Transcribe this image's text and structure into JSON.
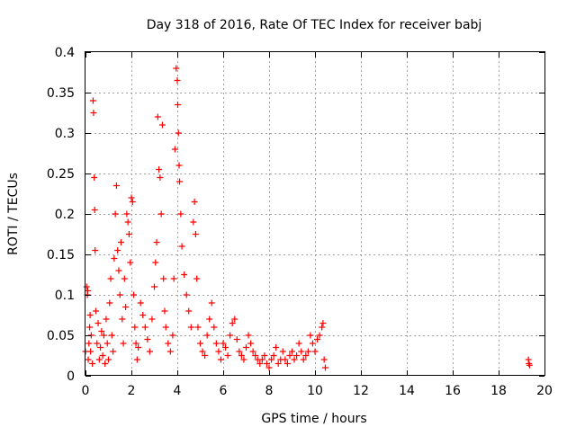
{
  "chart_data": {
    "type": "scatter",
    "title": "Day 318 of 2016, Rate Of TEC Index for receiver babj",
    "xlabel": "GPS time / hours",
    "ylabel": "ROTI / TECUs",
    "xlim": [
      0,
      20
    ],
    "ylim": [
      0,
      0.4
    ],
    "x_ticks": [
      0,
      2,
      4,
      6,
      8,
      10,
      12,
      14,
      16,
      18,
      20
    ],
    "y_ticks": [
      0,
      0.05,
      0.1,
      0.15,
      0.2,
      0.25,
      0.3,
      0.35,
      0.4
    ],
    "x_tick_labels": [
      "0",
      "2",
      "4",
      "6",
      "8",
      "10",
      "12",
      "14",
      "16",
      "18",
      "20"
    ],
    "y_tick_labels": [
      "0",
      "0.05",
      "0.1",
      "0.15",
      "0.2",
      "0.25",
      "0.3",
      "0.35",
      "0.4"
    ],
    "grid": true,
    "marker": "+",
    "color": "#ff0000",
    "series": [
      {
        "name": "ROTI",
        "points": [
          [
            0.0,
            0.03
          ],
          [
            0.05,
            0.11
          ],
          [
            0.08,
            0.1
          ],
          [
            0.1,
            0.105
          ],
          [
            0.12,
            0.02
          ],
          [
            0.15,
            0.04
          ],
          [
            0.18,
            0.06
          ],
          [
            0.2,
            0.075
          ],
          [
            0.22,
            0.03
          ],
          [
            0.25,
            0.05
          ],
          [
            0.3,
            0.015
          ],
          [
            0.33,
            0.34
          ],
          [
            0.35,
            0.325
          ],
          [
            0.38,
            0.245
          ],
          [
            0.4,
            0.205
          ],
          [
            0.42,
            0.155
          ],
          [
            0.45,
            0.08
          ],
          [
            0.5,
            0.04
          ],
          [
            0.55,
            0.065
          ],
          [
            0.6,
            0.02
          ],
          [
            0.65,
            0.035
          ],
          [
            0.7,
            0.055
          ],
          [
            0.75,
            0.025
          ],
          [
            0.8,
            0.05
          ],
          [
            0.85,
            0.015
          ],
          [
            0.9,
            0.07
          ],
          [
            0.95,
            0.04
          ],
          [
            1.0,
            0.02
          ],
          [
            1.05,
            0.09
          ],
          [
            1.1,
            0.12
          ],
          [
            1.15,
            0.05
          ],
          [
            1.2,
            0.03
          ],
          [
            1.25,
            0.145
          ],
          [
            1.3,
            0.2
          ],
          [
            1.35,
            0.235
          ],
          [
            1.4,
            0.155
          ],
          [
            1.45,
            0.13
          ],
          [
            1.5,
            0.1
          ],
          [
            1.55,
            0.165
          ],
          [
            1.6,
            0.07
          ],
          [
            1.65,
            0.04
          ],
          [
            1.7,
            0.12
          ],
          [
            1.75,
            0.085
          ],
          [
            1.8,
            0.2
          ],
          [
            1.85,
            0.19
          ],
          [
            1.9,
            0.175
          ],
          [
            1.95,
            0.14
          ],
          [
            2.0,
            0.22
          ],
          [
            2.05,
            0.215
          ],
          [
            2.1,
            0.1
          ],
          [
            2.15,
            0.06
          ],
          [
            2.2,
            0.04
          ],
          [
            2.25,
            0.02
          ],
          [
            2.3,
            0.035
          ],
          [
            2.4,
            0.09
          ],
          [
            2.5,
            0.075
          ],
          [
            2.6,
            0.06
          ],
          [
            2.7,
            0.045
          ],
          [
            2.8,
            0.03
          ],
          [
            2.9,
            0.07
          ],
          [
            3.0,
            0.11
          ],
          [
            3.05,
            0.14
          ],
          [
            3.1,
            0.165
          ],
          [
            3.15,
            0.32
          ],
          [
            3.2,
            0.255
          ],
          [
            3.25,
            0.245
          ],
          [
            3.3,
            0.2
          ],
          [
            3.35,
            0.31
          ],
          [
            3.4,
            0.12
          ],
          [
            3.45,
            0.08
          ],
          [
            3.5,
            0.06
          ],
          [
            3.6,
            0.04
          ],
          [
            3.7,
            0.03
          ],
          [
            3.8,
            0.05
          ],
          [
            3.85,
            0.12
          ],
          [
            3.9,
            0.28
          ],
          [
            3.95,
            0.38
          ],
          [
            4.0,
            0.365
          ],
          [
            4.02,
            0.335
          ],
          [
            4.05,
            0.3
          ],
          [
            4.08,
            0.26
          ],
          [
            4.1,
            0.24
          ],
          [
            4.15,
            0.2
          ],
          [
            4.2,
            0.16
          ],
          [
            4.3,
            0.125
          ],
          [
            4.4,
            0.1
          ],
          [
            4.5,
            0.08
          ],
          [
            4.6,
            0.06
          ],
          [
            4.7,
            0.19
          ],
          [
            4.75,
            0.215
          ],
          [
            4.8,
            0.175
          ],
          [
            4.85,
            0.12
          ],
          [
            4.9,
            0.06
          ],
          [
            5.0,
            0.04
          ],
          [
            5.1,
            0.03
          ],
          [
            5.2,
            0.025
          ],
          [
            5.3,
            0.05
          ],
          [
            5.4,
            0.07
          ],
          [
            5.5,
            0.09
          ],
          [
            5.6,
            0.06
          ],
          [
            5.7,
            0.04
          ],
          [
            5.8,
            0.03
          ],
          [
            5.9,
            0.02
          ],
          [
            6.0,
            0.04
          ],
          [
            6.1,
            0.035
          ],
          [
            6.2,
            0.025
          ],
          [
            6.3,
            0.05
          ],
          [
            6.4,
            0.065
          ],
          [
            6.5,
            0.07
          ],
          [
            6.6,
            0.045
          ],
          [
            6.7,
            0.03
          ],
          [
            6.8,
            0.025
          ],
          [
            6.9,
            0.02
          ],
          [
            7.0,
            0.035
          ],
          [
            7.1,
            0.05
          ],
          [
            7.2,
            0.04
          ],
          [
            7.3,
            0.03
          ],
          [
            7.4,
            0.025
          ],
          [
            7.5,
            0.02
          ],
          [
            7.6,
            0.015
          ],
          [
            7.7,
            0.02
          ],
          [
            7.8,
            0.025
          ],
          [
            7.9,
            0.015
          ],
          [
            8.0,
            0.01
          ],
          [
            8.1,
            0.02
          ],
          [
            8.2,
            0.025
          ],
          [
            8.3,
            0.035
          ],
          [
            8.4,
            0.015
          ],
          [
            8.5,
            0.02
          ],
          [
            8.6,
            0.03
          ],
          [
            8.7,
            0.02
          ],
          [
            8.8,
            0.015
          ],
          [
            8.9,
            0.025
          ],
          [
            9.0,
            0.03
          ],
          [
            9.1,
            0.02
          ],
          [
            9.2,
            0.025
          ],
          [
            9.3,
            0.04
          ],
          [
            9.4,
            0.03
          ],
          [
            9.5,
            0.02
          ],
          [
            9.6,
            0.025
          ],
          [
            9.7,
            0.03
          ],
          [
            9.8,
            0.05
          ],
          [
            9.9,
            0.04
          ],
          [
            10.0,
            0.03
          ],
          [
            10.1,
            0.045
          ],
          [
            10.2,
            0.05
          ],
          [
            10.3,
            0.06
          ],
          [
            10.35,
            0.065
          ],
          [
            10.4,
            0.02
          ],
          [
            10.45,
            0.01
          ],
          [
            19.3,
            0.02
          ],
          [
            19.32,
            0.015
          ],
          [
            19.35,
            0.013
          ]
        ]
      }
    ]
  }
}
